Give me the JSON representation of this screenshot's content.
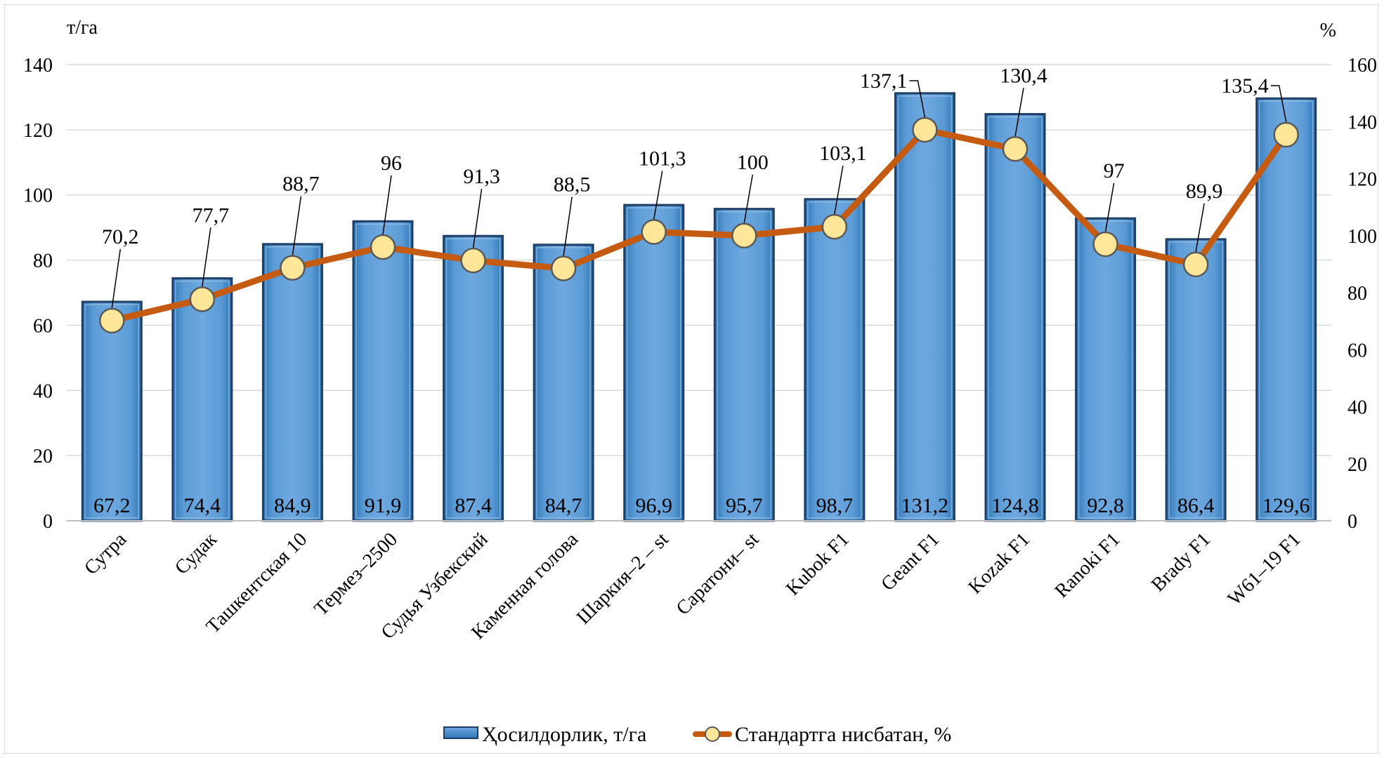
{
  "chart_data": {
    "type": "bar",
    "y_unit_left": "т/га",
    "y_unit_right": "%",
    "ylim_left": [
      0,
      140
    ],
    "ylim_right": [
      0,
      160
    ],
    "yticks_left": [
      "0",
      "20",
      "40",
      "60",
      "80",
      "100",
      "120",
      "140"
    ],
    "yticks_right": [
      "0",
      "20",
      "40",
      "60",
      "80",
      "100",
      "120",
      "140",
      "160"
    ],
    "grid": true,
    "legend_position": "bottom",
    "categories": [
      "Сутра",
      "Судак",
      "Ташкентская 10",
      "Термез–2500",
      "Судья Узбекский",
      "Каменная голова",
      "Шаркия–2 – st",
      "Саратони– st",
      "Kubok F1",
      "Geant F1",
      "Kozak F1",
      "Ranoki F1",
      "Brady F1",
      "W61–19 F1"
    ],
    "series": [
      {
        "name": "Ҳосилдорлик, т/га",
        "type": "bar",
        "axis": "left",
        "color": "#5b9bd5",
        "values": [
          67.2,
          74.4,
          84.9,
          91.9,
          87.4,
          84.7,
          96.9,
          95.7,
          98.7,
          131.2,
          124.8,
          92.8,
          86.4,
          129.6
        ],
        "labels": [
          "67,2",
          "74,4",
          "84,9",
          "91,9",
          "87,4",
          "84,7",
          "96,9",
          "95,7",
          "98,7",
          "131,2",
          "124,8",
          "92,8",
          "86,4",
          "129,6"
        ]
      },
      {
        "name": "Стандартга нисбатан, %",
        "type": "line",
        "axis": "right",
        "color": "#c55a11",
        "marker_color": "#ffe699",
        "values": [
          70.2,
          77.7,
          88.7,
          96,
          91.3,
          88.5,
          101.3,
          100,
          103.1,
          137.1,
          130.4,
          97,
          89.9,
          135.4
        ],
        "labels": [
          "70,2",
          "77,7",
          "88,7",
          "96",
          "91,3",
          "88,5",
          "101,3",
          "100",
          "103,1",
          "137,1",
          "130,4",
          "97",
          "89,9",
          "135,4"
        ]
      }
    ]
  }
}
